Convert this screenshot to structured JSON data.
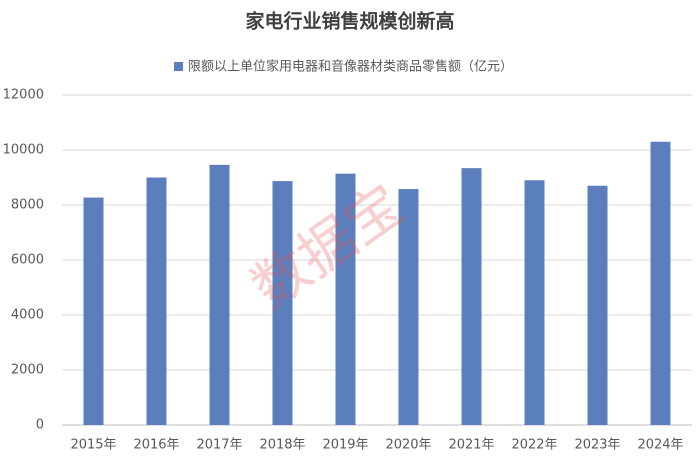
{
  "chart_data": {
    "type": "bar",
    "title": "家电行业销售规模创新高",
    "categories": [
      "2015年",
      "2016年",
      "2017年",
      "2018年",
      "2019年",
      "2020年",
      "2021年",
      "2022年",
      "2023年",
      "2024年"
    ],
    "series": [
      {
        "name": "限额以上单位家用电器和音像器材类商品零售额（亿元）",
        "color": "#5b7fbd",
        "values": [
          8270,
          9000,
          9460,
          8870,
          9140,
          8580,
          9340,
          8900,
          8700,
          10300
        ]
      }
    ],
    "ylim": [
      0,
      12000
    ],
    "yticks": [
      0,
      2000,
      4000,
      6000,
      8000,
      10000,
      12000
    ],
    "grid": true,
    "watermark": "数据宝"
  }
}
